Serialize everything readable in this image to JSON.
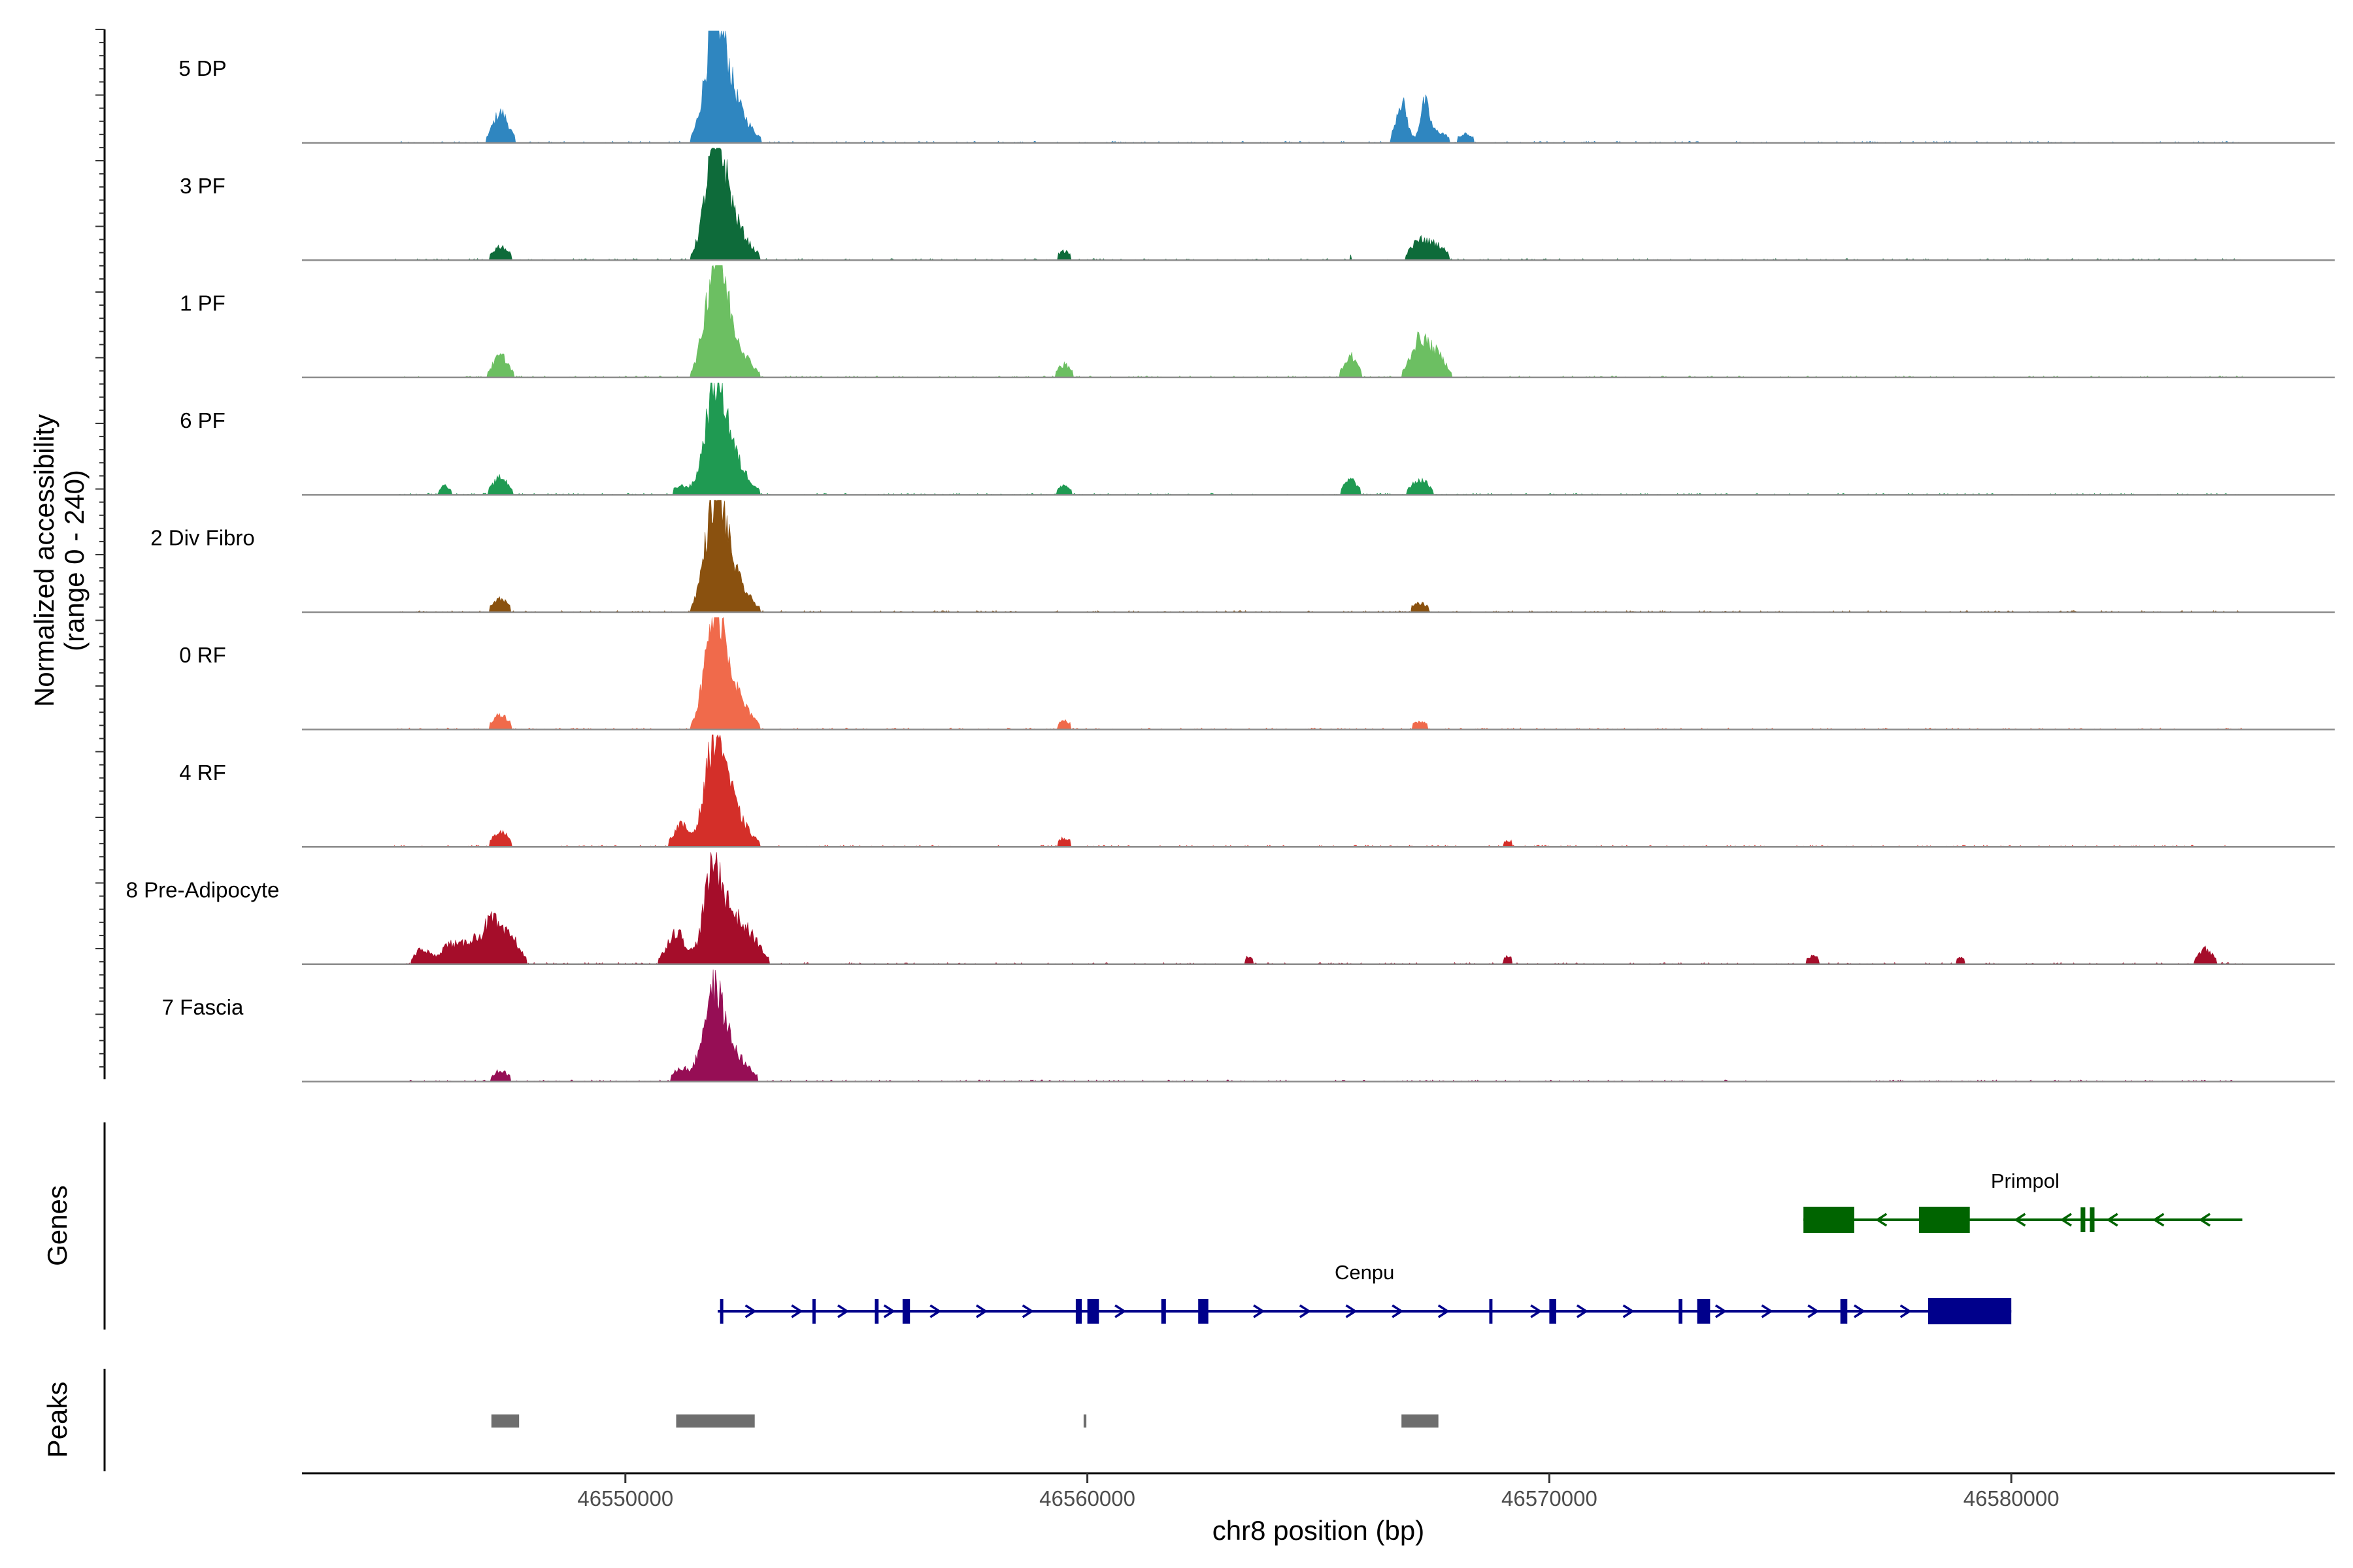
{
  "chart_data": {
    "type": "area",
    "title": "",
    "xlabel": "chr8 position (bp)",
    "ylabel_line1": "Normalized accessibility",
    "ylabel_line2": "(range 0 - 240)",
    "xlim": [
      46543000,
      46587000
    ],
    "ylim": [
      0,
      240
    ],
    "x_ticks": [
      46550000,
      46560000,
      46570000,
      46580000
    ],
    "x_tick_labels": [
      "46550000",
      "46560000",
      "46570000",
      "46580000"
    ],
    "track_range_bp": [
      46545000,
      46585000
    ],
    "series": [
      {
        "name": "5 DP",
        "color": "#2f86c0",
        "peaks": [
          [
            46547300,
            0.28,
            170
          ],
          [
            46551950,
            0.98,
            220
          ],
          [
            46552300,
            0.35,
            320
          ],
          [
            46566800,
            0.38,
            120
          ],
          [
            46567300,
            0.35,
            100
          ],
          [
            46567600,
            0.1,
            180
          ],
          [
            46568200,
            0.08,
            160
          ],
          [
            46559500,
            0.04,
            150
          ]
        ]
      },
      {
        "name": "3 PF",
        "color": "#0e6b3a",
        "peaks": [
          [
            46547300,
            0.13,
            170
          ],
          [
            46551950,
            0.92,
            220
          ],
          [
            46552300,
            0.32,
            320
          ],
          [
            46559500,
            0.08,
            150
          ],
          [
            46565700,
            0.05,
            150
          ],
          [
            46567200,
            0.18,
            200
          ],
          [
            46567600,
            0.12,
            180
          ],
          [
            46546700,
            0.03,
            160
          ]
        ]
      },
      {
        "name": "1 PF",
        "color": "#6cbf62",
        "peaks": [
          [
            46547300,
            0.2,
            170
          ],
          [
            46551950,
            0.95,
            220
          ],
          [
            46552300,
            0.32,
            320
          ],
          [
            46559500,
            0.12,
            150
          ],
          [
            46565700,
            0.2,
            150
          ],
          [
            46567200,
            0.35,
            200
          ],
          [
            46567600,
            0.18,
            180
          ],
          [
            46570800,
            0.04,
            150
          ]
        ]
      },
      {
        "name": "6 PF",
        "color": "#1f9a52",
        "peaks": [
          [
            46546100,
            0.08,
            150
          ],
          [
            46547300,
            0.16,
            170
          ],
          [
            46551950,
            0.92,
            220
          ],
          [
            46552300,
            0.3,
            320
          ],
          [
            46551200,
            0.08,
            160
          ],
          [
            46559500,
            0.09,
            150
          ],
          [
            46565700,
            0.14,
            150
          ],
          [
            46567200,
            0.14,
            200
          ],
          [
            46571900,
            0.04,
            150
          ],
          [
            46583000,
            0.03,
            150
          ]
        ]
      },
      {
        "name": "2 Div Fibro",
        "color": "#8a510f",
        "peaks": [
          [
            46547300,
            0.12,
            170
          ],
          [
            46551950,
            0.95,
            220
          ],
          [
            46552300,
            0.3,
            320
          ],
          [
            46559500,
            0.05,
            150
          ],
          [
            46567200,
            0.08,
            200
          ],
          [
            46546700,
            0.04,
            160
          ]
        ]
      },
      {
        "name": "0 RF",
        "color": "#f06a4b",
        "peaks": [
          [
            46547300,
            0.14,
            170
          ],
          [
            46551950,
            0.95,
            220
          ],
          [
            46552300,
            0.32,
            320
          ],
          [
            46559500,
            0.08,
            150
          ],
          [
            46567200,
            0.07,
            200
          ],
          [
            46565700,
            0.04,
            150
          ]
        ]
      },
      {
        "name": "4 RF",
        "color": "#d42f29",
        "peaks": [
          [
            46547300,
            0.14,
            170
          ],
          [
            46551200,
            0.2,
            160
          ],
          [
            46551950,
            0.92,
            220
          ],
          [
            46552300,
            0.3,
            320
          ],
          [
            46559500,
            0.08,
            150
          ],
          [
            46567200,
            0.05,
            200
          ],
          [
            46569100,
            0.06,
            150
          ]
        ]
      },
      {
        "name": "8 Pre-Adipocyte",
        "color": "#a50d2a",
        "peaks": [
          [
            46545600,
            0.14,
            160
          ],
          [
            46546200,
            0.18,
            200
          ],
          [
            46546700,
            0.22,
            200
          ],
          [
            46547100,
            0.35,
            160
          ],
          [
            46547500,
            0.26,
            200
          ],
          [
            46551100,
            0.3,
            200
          ],
          [
            46551900,
            0.85,
            200
          ],
          [
            46552350,
            0.4,
            260
          ],
          [
            46552800,
            0.15,
            200
          ],
          [
            46560000,
            0.05,
            120
          ],
          [
            46563500,
            0.07,
            120
          ],
          [
            46566800,
            0.05,
            120
          ],
          [
            46569100,
            0.07,
            120
          ],
          [
            46575700,
            0.08,
            140
          ],
          [
            46578900,
            0.06,
            140
          ],
          [
            46584200,
            0.14,
            160
          ]
        ]
      },
      {
        "name": "7 Fascia",
        "color": "#960e55",
        "peaks": [
          [
            46547300,
            0.1,
            170
          ],
          [
            46551200,
            0.12,
            160
          ],
          [
            46551900,
            0.75,
            220
          ],
          [
            46552300,
            0.25,
            320
          ],
          [
            46559500,
            0.05,
            150
          ],
          [
            46564200,
            0.04,
            150
          ],
          [
            46567200,
            0.04,
            200
          ]
        ]
      }
    ],
    "genes": [
      {
        "name": "Primpol",
        "color": "#006400",
        "start": 46575500,
        "end": 46585000,
        "strand": "-",
        "blocks": [
          [
            46575500,
            46576600
          ],
          [
            46578000,
            46579100
          ],
          [
            46581500,
            46581600
          ],
          [
            46581700,
            46581800
          ]
        ]
      },
      {
        "name": "Cenpu",
        "color": "#00008b",
        "start": 46552000,
        "end": 46580000,
        "strand": "+",
        "blocks": [
          [
            46552050,
            46552120
          ],
          [
            46554050,
            46554120
          ],
          [
            46555400,
            46555480
          ],
          [
            46556000,
            46556160
          ],
          [
            46559750,
            46559880
          ],
          [
            46560000,
            46560250
          ],
          [
            46561600,
            46561700
          ],
          [
            46562400,
            46562620
          ],
          [
            46568700,
            46568770
          ],
          [
            46570000,
            46570150
          ],
          [
            46572800,
            46572880
          ],
          [
            46573200,
            46573480
          ],
          [
            46576300,
            46576450
          ],
          [
            46578200,
            46580000
          ]
        ]
      }
    ],
    "peaks_track": [
      {
        "start": 46547100,
        "end": 46547700
      },
      {
        "start": 46551100,
        "end": 46552800
      },
      {
        "start": 46559920,
        "end": 46559980
      },
      {
        "start": 46566800,
        "end": 46567600
      }
    ],
    "panel_labels": {
      "genes": "Genes",
      "peaks": "Peaks"
    },
    "grid": false,
    "legend": "none"
  }
}
